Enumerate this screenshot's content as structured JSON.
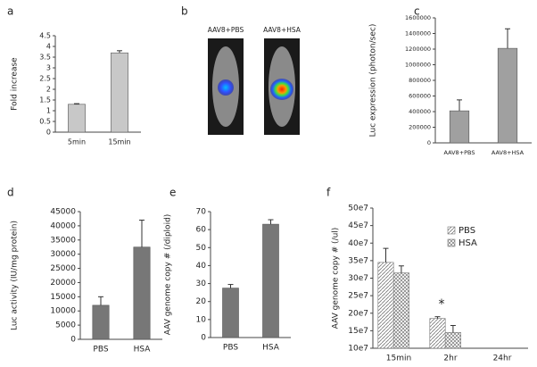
{
  "image_panel": {
    "label": "b",
    "captions": [
      "AAV8+PBS",
      "AAV8+HSA"
    ]
  },
  "chart_data": [
    {
      "type": "bar",
      "label": "a",
      "y_label": "Fold increase",
      "categories": [
        "5min",
        "15min"
      ],
      "values": [
        1.3,
        3.7
      ],
      "errors": [
        0.03,
        0.1
      ],
      "color": "#c8c8c8",
      "ylim": [
        0,
        4.5
      ],
      "yticks": [
        0,
        0.5,
        1,
        1.5,
        2,
        2.5,
        3,
        3.5,
        4,
        4.5
      ]
    },
    {
      "type": "bar",
      "label": "c",
      "y_label": "Luc expression (photon/sec)",
      "categories": [
        "AAV8+PBS",
        "AAV8+HSA"
      ],
      "values": [
        410000,
        1210000
      ],
      "errors": [
        140000,
        250000
      ],
      "color": "#a0a0a0",
      "ylim": [
        0,
        1600000
      ],
      "yticks": [
        0,
        200000,
        400000,
        600000,
        800000,
        1000000,
        1200000,
        1400000,
        1600000
      ]
    },
    {
      "type": "bar",
      "label": "d",
      "y_label": "Luc activity (IU/mg protein)",
      "categories": [
        "PBS",
        "HSA"
      ],
      "values": [
        12000,
        32500
      ],
      "errors": [
        3000,
        9500
      ],
      "color": "#777777",
      "ylim": [
        0,
        45000
      ],
      "yticks": [
        0,
        5000,
        10000,
        15000,
        20000,
        25000,
        30000,
        35000,
        40000,
        45000
      ]
    },
    {
      "type": "bar",
      "label": "e",
      "y_label": "AAV genome copy # (/diploid)",
      "categories": [
        "PBS",
        "HSA"
      ],
      "values": [
        27.5,
        63
      ],
      "errors": [
        2,
        2.5
      ],
      "color": "#777777",
      "ylim": [
        0,
        70
      ],
      "yticks": [
        0,
        10,
        20,
        30,
        40,
        50,
        60,
        70
      ]
    },
    {
      "type": "bar",
      "label": "f",
      "y_label": "AAV genome copy # (/ul)",
      "categories": [
        "15min",
        "2hr",
        "24hr"
      ],
      "series": [
        {
          "name": "PBS",
          "color": "#777777",
          "values": [
            345000000,
            185000000,
            null
          ],
          "errors": [
            40000000,
            5000000,
            null
          ]
        },
        {
          "name": "HSA",
          "color": "#777777",
          "values": [
            315000000,
            145000000,
            null
          ],
          "errors": [
            20000000,
            20000000,
            null
          ]
        }
      ],
      "annotation": "*",
      "ylim": [
        100000000,
        500000000
      ],
      "yticks": [
        {
          "value": 100000000,
          "label": "10e7"
        },
        {
          "value": 150000000,
          "label": "15e7"
        },
        {
          "value": 200000000,
          "label": "20e7"
        },
        {
          "value": 250000000,
          "label": "25e7"
        },
        {
          "value": 300000000,
          "label": "30e7"
        },
        {
          "value": 350000000,
          "label": "35e7"
        },
        {
          "value": 400000000,
          "label": "40e7"
        },
        {
          "value": 450000000,
          "label": "45e7"
        },
        {
          "value": 500000000,
          "label": "50e7"
        }
      ]
    }
  ]
}
